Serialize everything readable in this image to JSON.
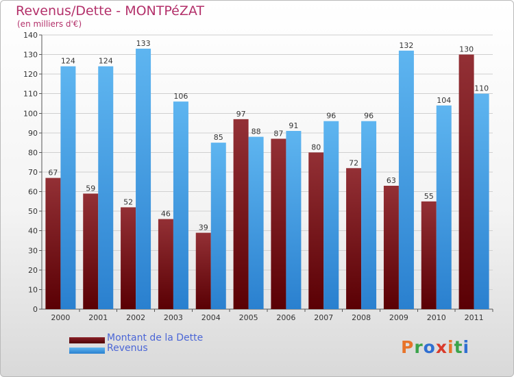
{
  "header": {
    "title": "Revenus/Dette - MONTPéZAT",
    "subtitle": "(en milliers d'€)"
  },
  "logo": {
    "text": "Proxiti"
  },
  "chart_data": {
    "type": "bar",
    "title": "Revenus/Dette - MONTPéZAT",
    "subtitle": "(en milliers d'€)",
    "categories": [
      "2000",
      "2001",
      "2002",
      "2003",
      "2004",
      "2005",
      "2006",
      "2007",
      "2008",
      "2009",
      "2010",
      "2011"
    ],
    "series": [
      {
        "name": "Montant de la Dette",
        "color": "#7a0f12",
        "values": [
          67,
          59,
          52,
          46,
          39,
          97,
          87,
          80,
          72,
          63,
          55,
          130
        ]
      },
      {
        "name": "Revenus",
        "color": "#3b9be6",
        "values": [
          124,
          124,
          133,
          106,
          85,
          88,
          91,
          96,
          96,
          132,
          104,
          110
        ]
      }
    ],
    "ylim": [
      0,
      140
    ],
    "yticks": [
      0,
      10,
      20,
      30,
      40,
      50,
      60,
      70,
      80,
      90,
      100,
      110,
      120,
      130,
      140
    ],
    "grid": true,
    "legend_position": "bottom-left"
  }
}
